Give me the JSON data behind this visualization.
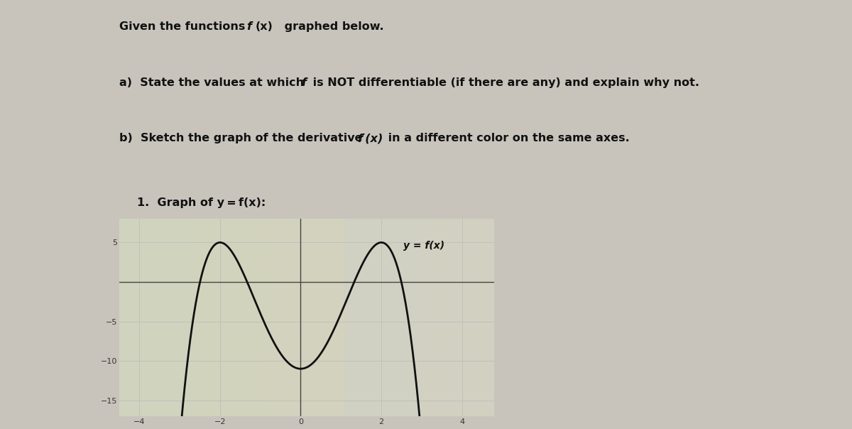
{
  "curve_label": "y = f(x)",
  "xlim": [
    -4.5,
    4.8
  ],
  "ylim": [
    -17,
    8
  ],
  "xticks": [
    -4,
    -2,
    0,
    2,
    4
  ],
  "yticks": [
    -15,
    -10,
    -5,
    5
  ],
  "grid_color": "#bbbbbb",
  "curve_color": "#111111",
  "fig_bg": "#c8c4bc",
  "plot_bg": "#c8c8b0",
  "text_color": "#111111",
  "curve_linewidth": 2.0,
  "tick_fontsize": 8
}
